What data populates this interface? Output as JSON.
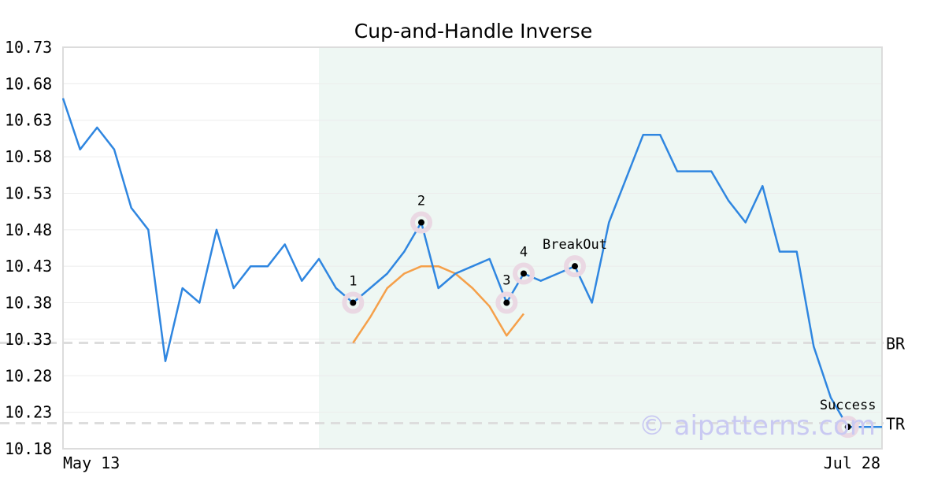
{
  "chart_data": {
    "type": "line",
    "title": "Cup-and-Handle Inverse",
    "x_start_label": "May 13",
    "x_end_label": "Jul 28",
    "ylim": [
      10.18,
      10.73
    ],
    "yticks": [
      "10.18",
      "10.23",
      "10.28",
      "10.33",
      "10.38",
      "10.43",
      "10.48",
      "10.53",
      "10.58",
      "10.63",
      "10.68",
      "10.73"
    ],
    "grid": true,
    "series": [
      {
        "color": "#2f86e0",
        "values": [
          10.66,
          10.59,
          10.62,
          10.59,
          10.51,
          10.48,
          10.3,
          10.4,
          10.38,
          10.48,
          10.4,
          10.43,
          10.43,
          10.46,
          10.41,
          10.44,
          10.4,
          10.38,
          10.4,
          10.42,
          10.45,
          10.49,
          10.4,
          10.42,
          10.43,
          10.44,
          10.38,
          10.42,
          10.41,
          10.42,
          10.43,
          10.38,
          10.49,
          10.55,
          10.61,
          10.61,
          10.56,
          10.56,
          10.56,
          10.52,
          10.49,
          10.54,
          10.45,
          10.45,
          10.32,
          10.25,
          10.21,
          10.21,
          10.21
        ]
      }
    ],
    "pattern_curve": {
      "color": "#f5a04a",
      "points": [
        [
          17,
          10.325
        ],
        [
          18,
          10.36
        ],
        [
          19,
          10.4
        ],
        [
          20,
          10.42
        ],
        [
          21,
          10.43
        ],
        [
          22,
          10.43
        ],
        [
          23,
          10.42
        ],
        [
          24,
          10.4
        ],
        [
          25,
          10.375
        ],
        [
          26,
          10.335
        ],
        [
          27,
          10.365
        ]
      ]
    },
    "highlight_range": [
      15,
      48
    ],
    "levels": [
      {
        "label": "BR",
        "value": 10.325
      },
      {
        "label": "TR",
        "value": 10.215
      }
    ],
    "markers": [
      {
        "label": "1",
        "x": 17,
        "y": 10.38,
        "label_pos": "above"
      },
      {
        "label": "2",
        "x": 21,
        "y": 10.49,
        "label_pos": "above"
      },
      {
        "label": "3",
        "x": 26,
        "y": 10.38,
        "label_pos": "left"
      },
      {
        "label": "4",
        "x": 27,
        "y": 10.42,
        "label_pos": "above"
      },
      {
        "label": "BreakOut",
        "x": 30,
        "y": 10.43,
        "label_pos": "above"
      },
      {
        "label": "Success",
        "x": 46,
        "y": 10.21,
        "label_pos": "above"
      }
    ],
    "colors": {
      "line": "#2f86e0",
      "curve": "#f5a04a",
      "highlight": "#eef7f3",
      "marker_ring": "#ead8e3",
      "level_line": "#dddddd"
    }
  },
  "watermark": "© aipatterns.com"
}
